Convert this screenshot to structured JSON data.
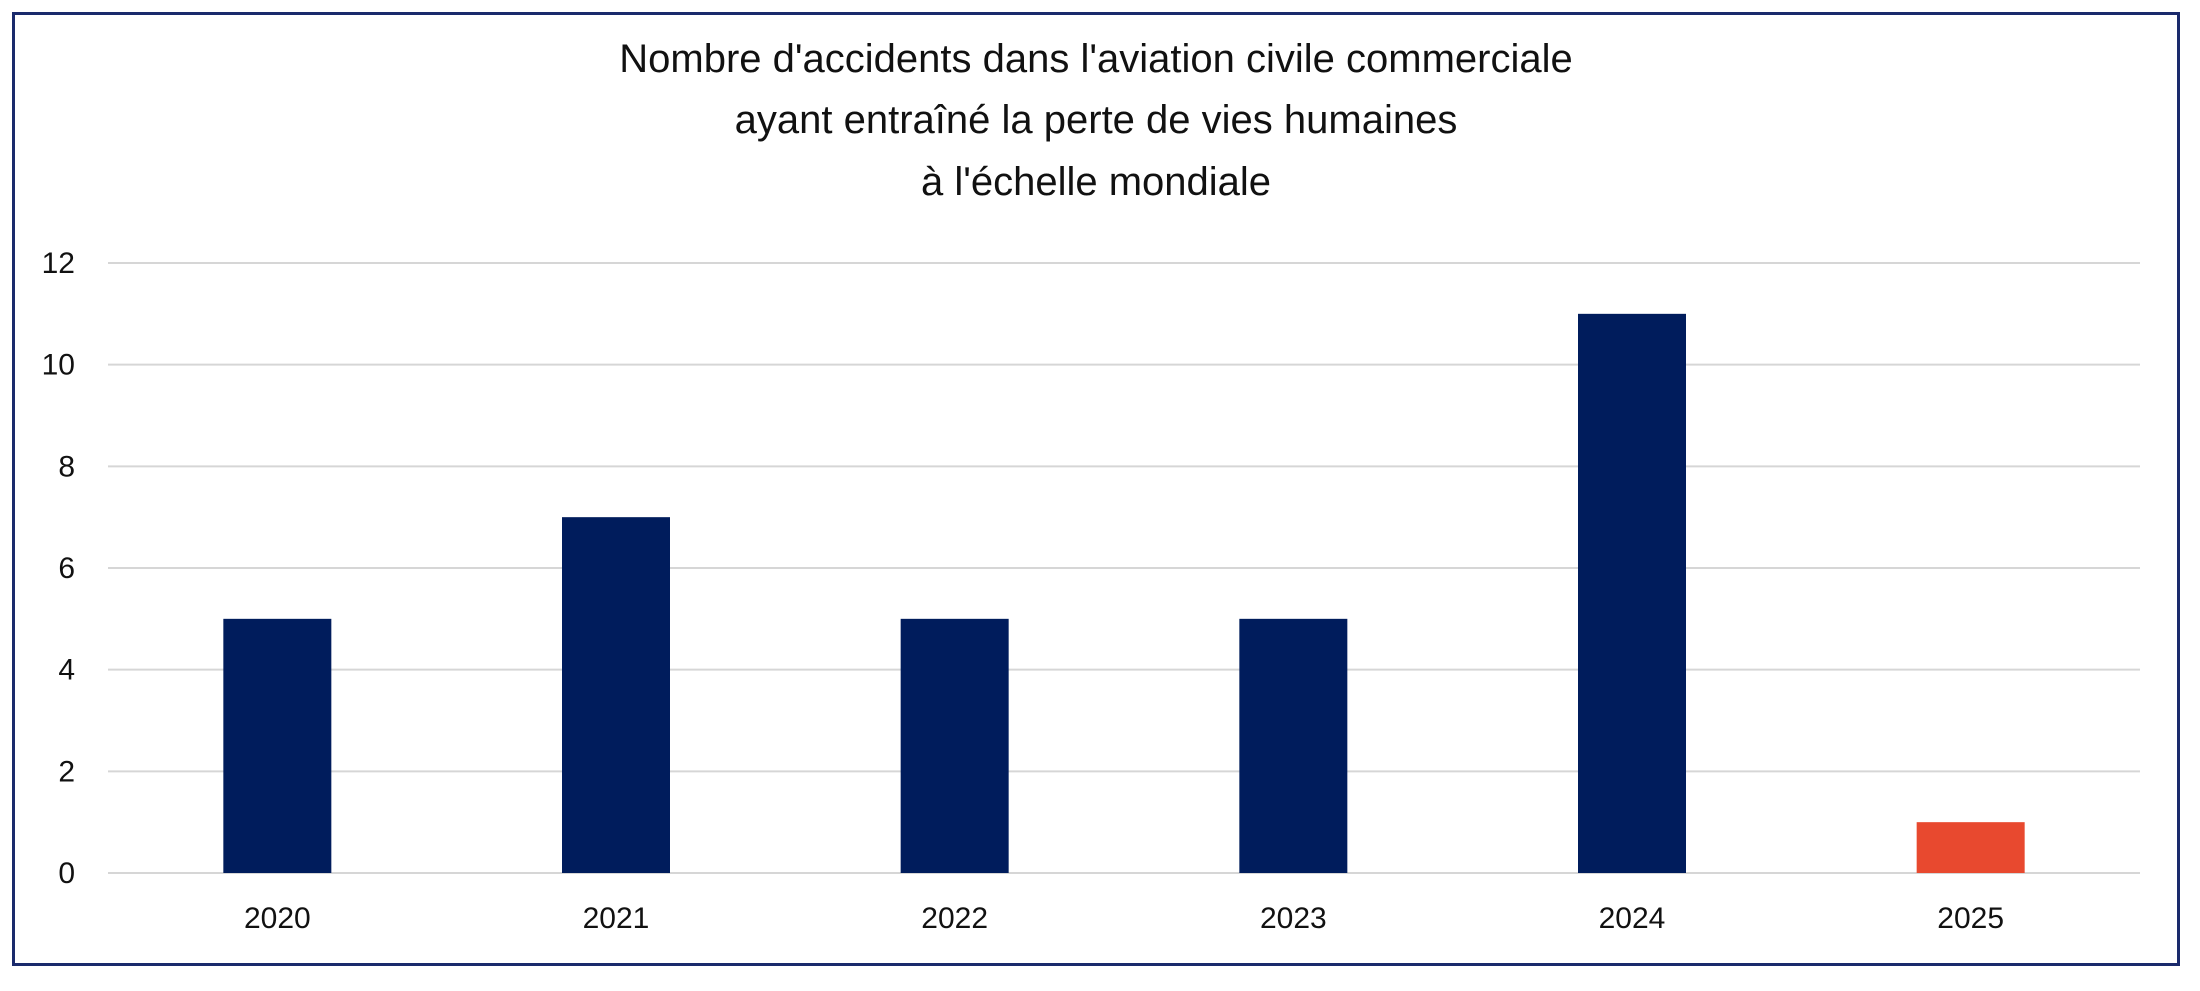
{
  "chart_data": {
    "type": "bar",
    "title_lines": [
      "Nombre d'accidents dans l'aviation civile commerciale",
      "ayant entraîné la perte de vies humaines",
      "à l'échelle mondiale"
    ],
    "categories": [
      "2020",
      "2021",
      "2022",
      "2023",
      "2024",
      "2025"
    ],
    "values": [
      5,
      7,
      5,
      5,
      11,
      1
    ],
    "bar_colors": [
      "#001c5c",
      "#001c5c",
      "#001c5c",
      "#001c5c",
      "#001c5c",
      "#e8492f"
    ],
    "ylim": [
      0,
      12
    ],
    "yticks": [
      "0",
      "2",
      "4",
      "6",
      "8",
      "10",
      "12"
    ],
    "xlabel": "",
    "ylabel": "",
    "grid": true,
    "legend": "none"
  }
}
